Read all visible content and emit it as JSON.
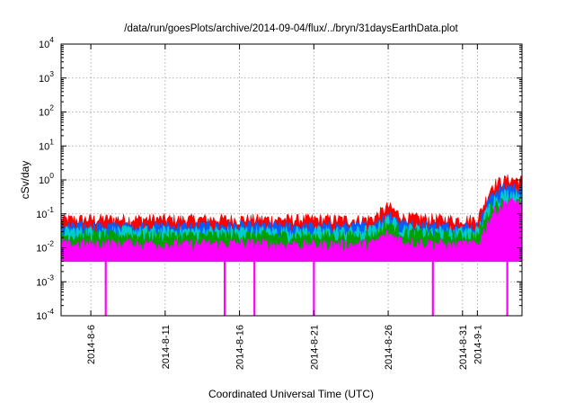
{
  "chart_data": {
    "type": "area",
    "title": "/data/run/goesPlots/archive/2014-09-04/flux/../bryn/31daysEarthData.plot",
    "xlabel": "Coordinated Universal Time (UTC)",
    "ylabel": "cSv/day",
    "yscale": "log",
    "ylim": [
      0.0001,
      10000
    ],
    "xlim": [
      "2014-08-04",
      "2014-09-04"
    ],
    "grid": true,
    "legend": "none",
    "x_ticks": [
      {
        "date": "2014-08-06",
        "label": "2014-8-6"
      },
      {
        "date": "2014-08-11",
        "label": "2014-8-11"
      },
      {
        "date": "2014-08-16",
        "label": "2014-8-16"
      },
      {
        "date": "2014-08-21",
        "label": "2014-8-21"
      },
      {
        "date": "2014-08-26",
        "label": "2014-8-26"
      },
      {
        "date": "2014-08-31",
        "label": "2014-8-31"
      },
      {
        "date": "2014-09-01",
        "label": "2014-9-1"
      }
    ],
    "y_ticks": [
      {
        "value": 0.0001,
        "base": "10",
        "exp": "-4"
      },
      {
        "value": 0.001,
        "base": "10",
        "exp": "-3"
      },
      {
        "value": 0.01,
        "base": "10",
        "exp": "-2"
      },
      {
        "value": 0.1,
        "base": "10",
        "exp": "-1"
      },
      {
        "value": 1,
        "base": "10",
        "exp": "0"
      },
      {
        "value": 10,
        "base": "10",
        "exp": "1"
      },
      {
        "value": 100,
        "base": "10",
        "exp": "2"
      },
      {
        "value": 1000,
        "base": "10",
        "exp": "3"
      },
      {
        "value": 10000,
        "base": "10",
        "exp": "4"
      }
    ],
    "x": [
      "2014-08-04",
      "2014-08-08",
      "2014-08-12",
      "2014-08-16",
      "2014-08-20",
      "2014-08-24",
      "2014-08-25",
      "2014-08-26",
      "2014-08-27",
      "2014-08-30",
      "2014-09-01",
      "2014-09-02",
      "2014-09-03",
      "2014-09-04"
    ],
    "series": [
      {
        "color": "#ff0000",
        "values": [
          0.065,
          0.068,
          0.066,
          0.067,
          0.066,
          0.065,
          0.07,
          0.16,
          0.075,
          0.066,
          0.065,
          0.7,
          1.0,
          0.95
        ]
      },
      {
        "color": "#0060ff",
        "values": [
          0.04,
          0.042,
          0.041,
          0.042,
          0.041,
          0.04,
          0.045,
          0.1,
          0.05,
          0.041,
          0.04,
          0.4,
          0.6,
          0.55
        ]
      },
      {
        "color": "#00cccc",
        "values": [
          0.03,
          0.031,
          0.03,
          0.031,
          0.03,
          0.03,
          0.033,
          0.07,
          0.038,
          0.03,
          0.03,
          0.25,
          0.4,
          0.38
        ]
      },
      {
        "color": "#00a000",
        "values": [
          0.022,
          0.023,
          0.022,
          0.023,
          0.022,
          0.022,
          0.024,
          0.05,
          0.028,
          0.022,
          0.022,
          0.18,
          0.22,
          0.2
        ]
      },
      {
        "color": "#ff00ff",
        "values": [
          0.012,
          0.013,
          0.012,
          0.013,
          0.012,
          0.012,
          0.013,
          0.025,
          0.015,
          0.012,
          0.012,
          0.1,
          0.22,
          0.2
        ]
      }
    ],
    "data_gaps": [
      "2014-08-07",
      "2014-08-15",
      "2014-08-17",
      "2014-08-21",
      "2014-08-29",
      "2014-09-03"
    ]
  }
}
